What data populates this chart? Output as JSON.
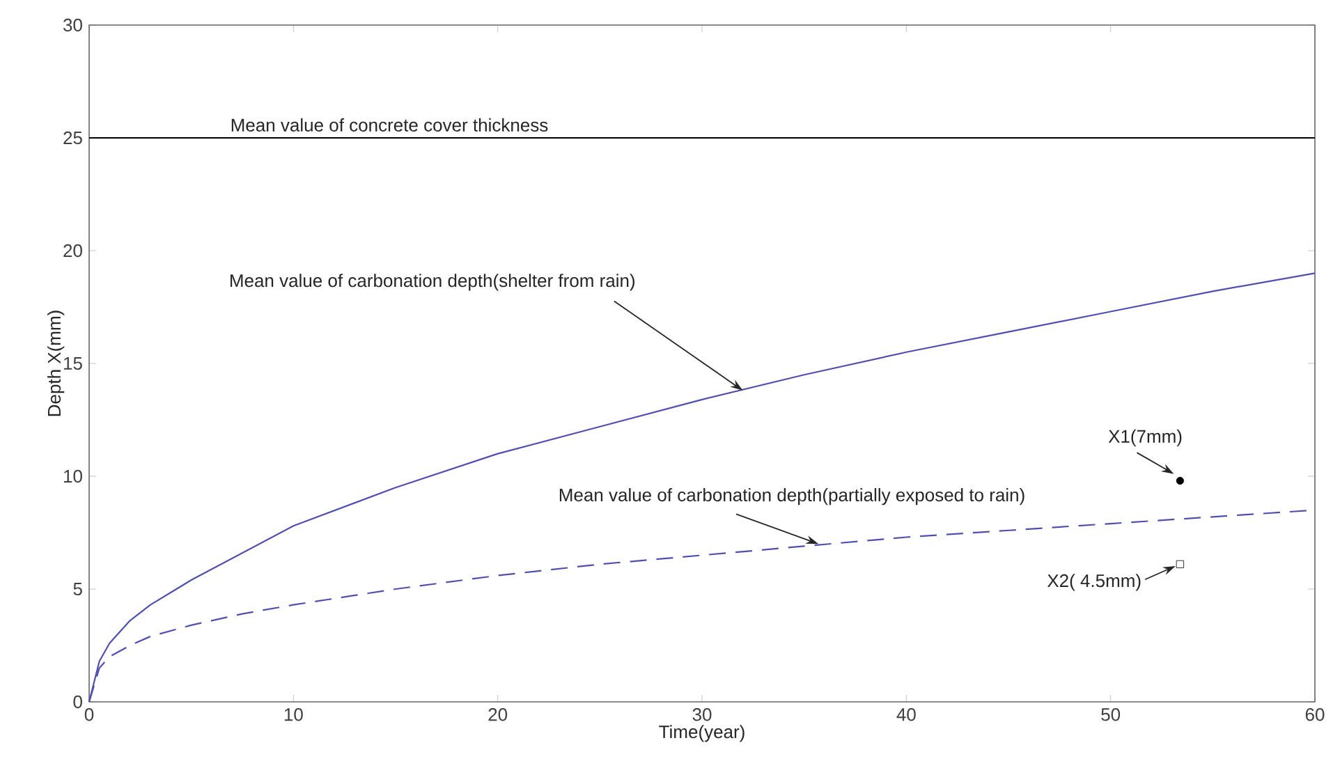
{
  "chart_data": {
    "type": "line",
    "xlabel": "Time(year)",
    "ylabel": "Depth X(mm)",
    "xlim": [
      0,
      60
    ],
    "ylim": [
      0,
      30
    ],
    "xticks": [
      0,
      10,
      20,
      30,
      40,
      50,
      60
    ],
    "yticks": [
      0,
      5,
      10,
      15,
      20,
      25,
      30
    ],
    "series": [
      {
        "color": "#4f4fb0",
        "line_style": "solid",
        "marker": "none",
        "x": [
          0,
          0.5,
          1,
          2,
          3,
          5,
          7.5,
          10,
          15,
          20,
          25,
          30,
          35,
          40,
          45,
          50,
          55,
          60
        ],
        "values": [
          0,
          1.8,
          2.6,
          3.6,
          4.3,
          5.4,
          6.6,
          7.8,
          9.5,
          11.0,
          12.2,
          13.4,
          14.5,
          15.5,
          16.4,
          17.3,
          18.2,
          19.0
        ]
      },
      {
        "color": "#4f4fb0",
        "line_style": "dashed",
        "marker": "none",
        "x": [
          0,
          0.5,
          1,
          2,
          3,
          5,
          7.5,
          10,
          15,
          20,
          25,
          30,
          35,
          40,
          45,
          50,
          55,
          60
        ],
        "values": [
          0,
          1.5,
          2.0,
          2.5,
          2.9,
          3.4,
          3.9,
          4.3,
          5.0,
          5.6,
          6.1,
          6.5,
          6.9,
          7.3,
          7.6,
          7.9,
          8.2,
          8.5
        ]
      },
      {
        "type": "scatter",
        "color": "#000000",
        "marker": "circle",
        "x": [
          53.4
        ],
        "values": [
          9.8
        ]
      },
      {
        "type": "scatter",
        "color": "#000000",
        "marker": "square",
        "x": [
          53.4
        ],
        "values": [
          6.1
        ]
      }
    ],
    "ref_lines": [
      {
        "axis": "y",
        "value": 25,
        "label": "Mean value of concrete cover thickness",
        "color": "#000000"
      }
    ],
    "annotations": [
      {
        "text": "Mean value of carbonation depth(shelter from rain)",
        "x": 32,
        "y": 13.8
      },
      {
        "text": "Mean value of carbonation depth(partially exposed to rain)",
        "x": 35.7,
        "y": 7.0
      },
      {
        "text": "X1(7mm)",
        "x": 53.4,
        "y": 9.8
      },
      {
        "text": "X2( 4.5mm)",
        "x": 53.4,
        "y": 6.1
      }
    ]
  }
}
